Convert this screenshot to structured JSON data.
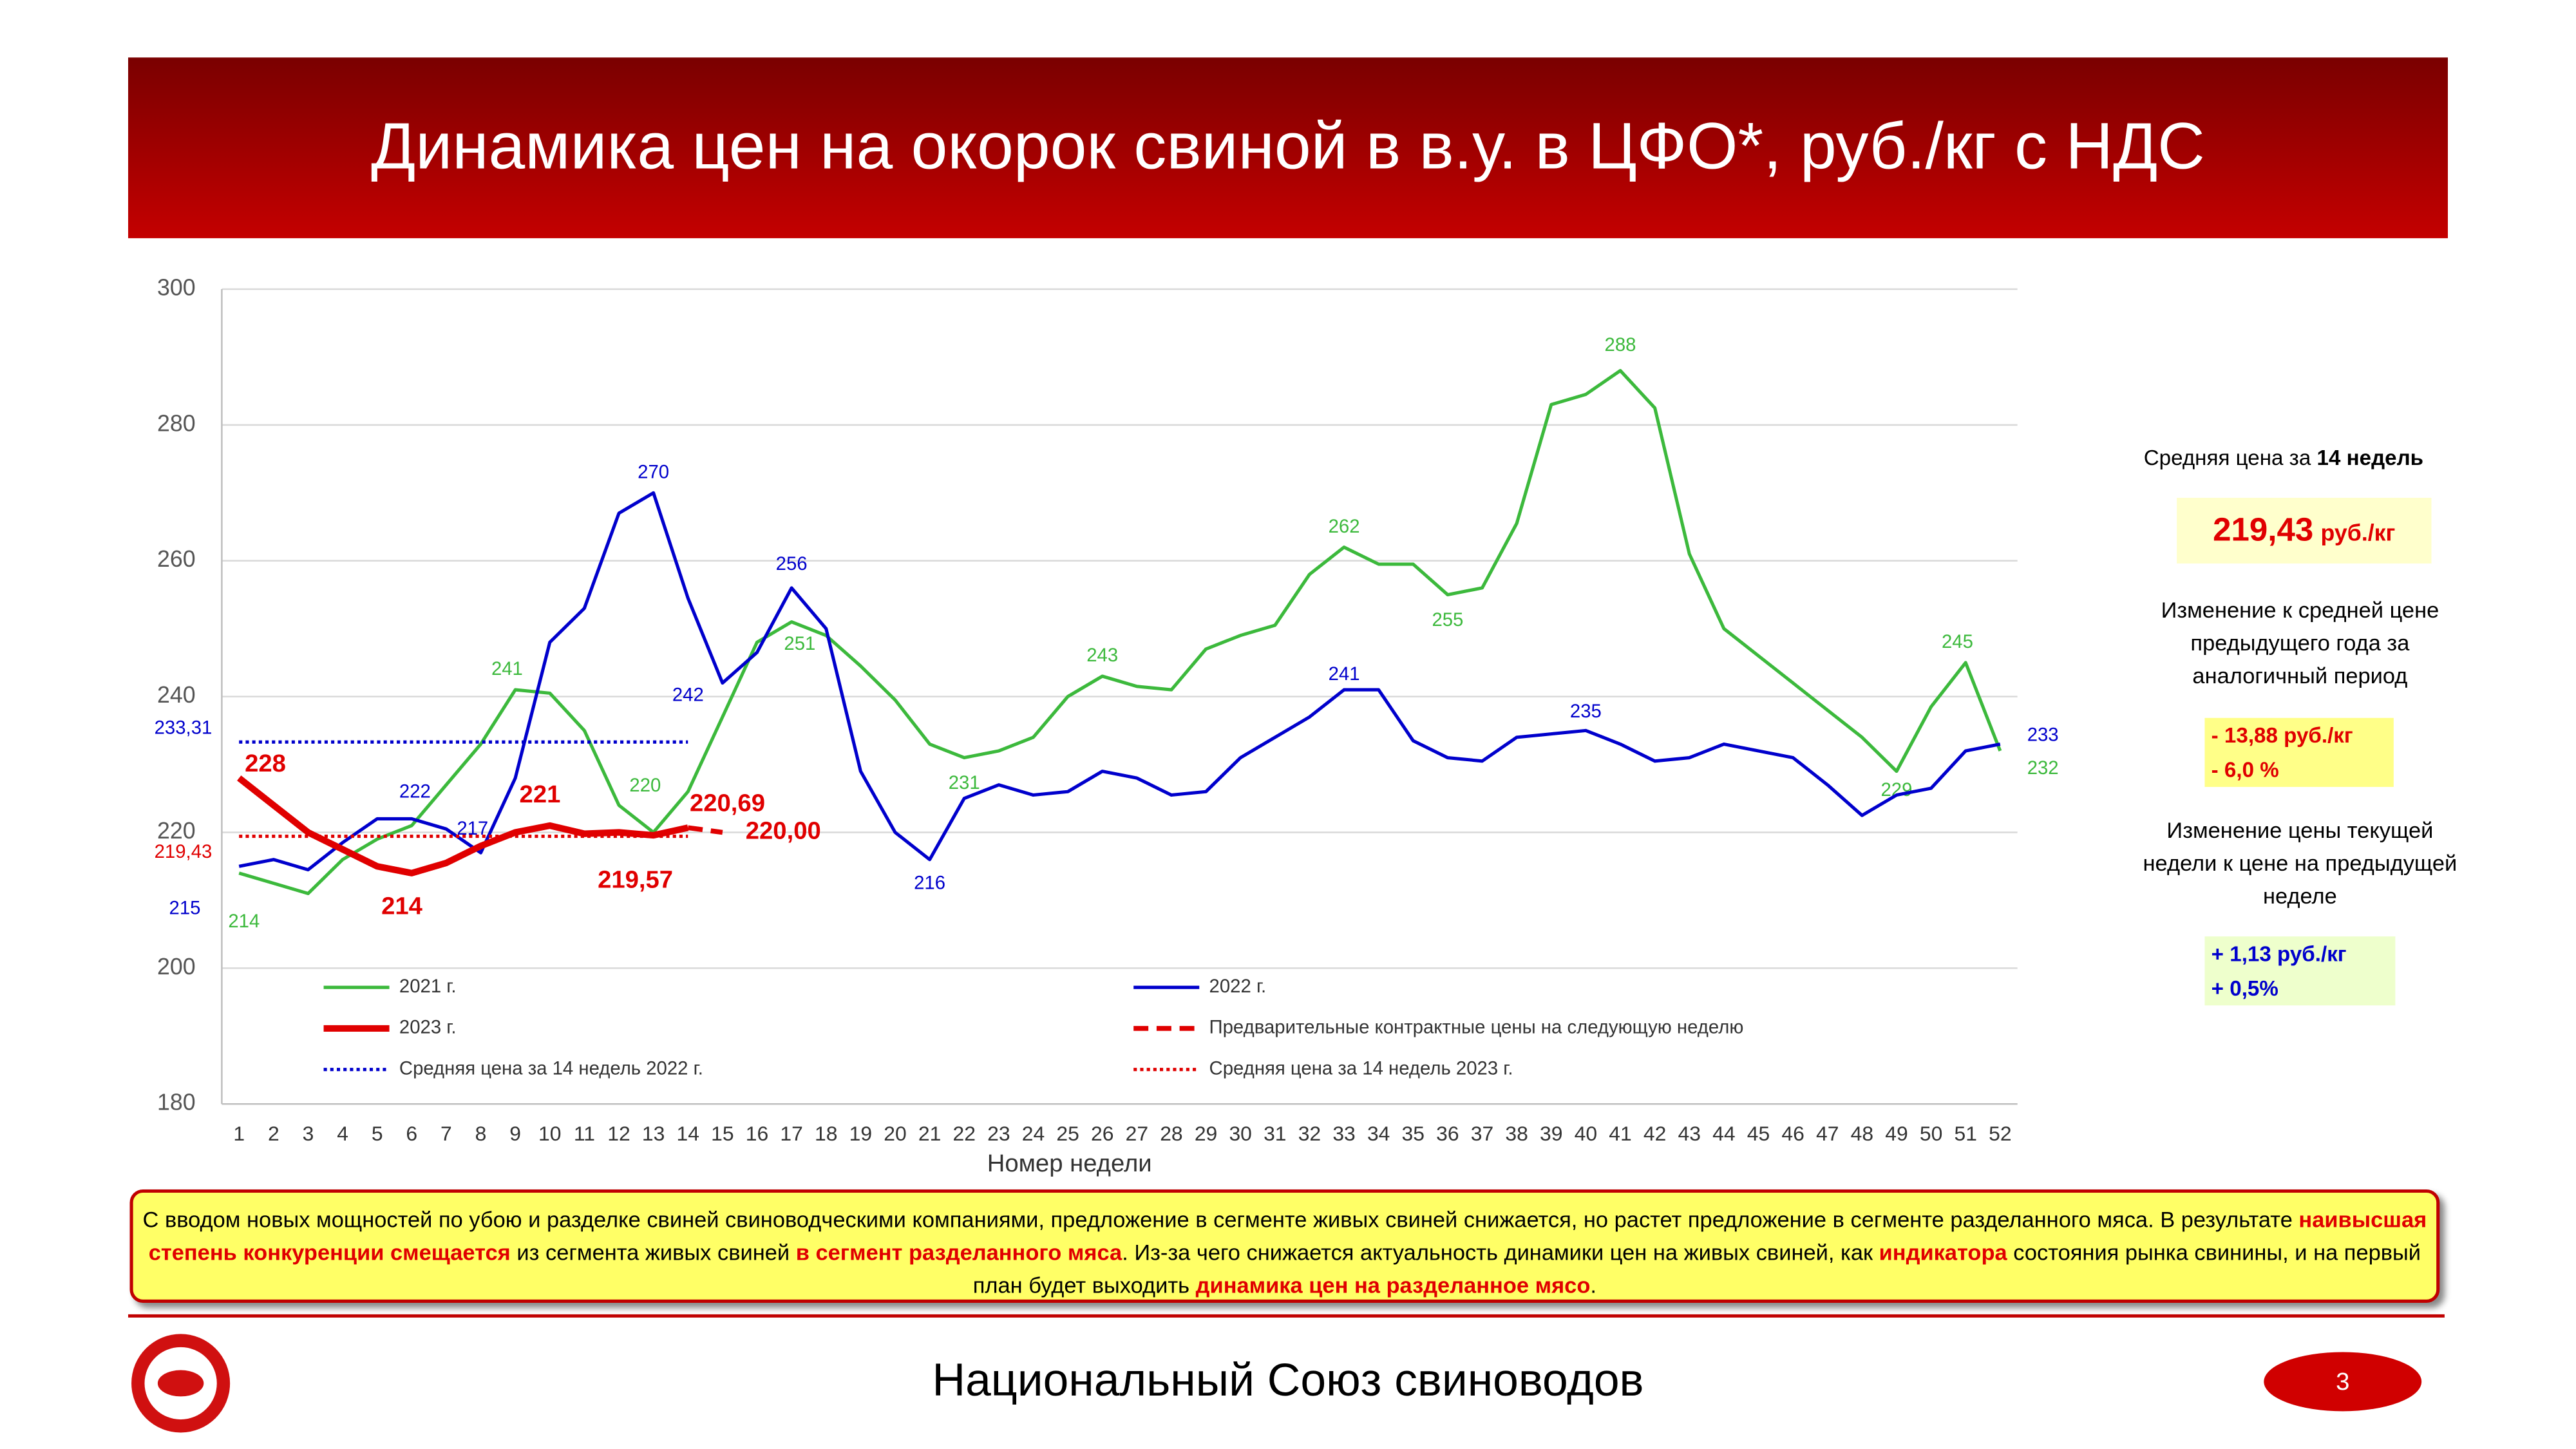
{
  "header": {
    "title": "Динамика цен на окорок свиной в в.у. в ЦФО*, руб./кг с НДС"
  },
  "chart_data": {
    "type": "line",
    "x_label": "Номер недели",
    "x": [
      1,
      2,
      3,
      4,
      5,
      6,
      7,
      8,
      9,
      10,
      11,
      12,
      13,
      14,
      15,
      16,
      17,
      18,
      19,
      20,
      21,
      22,
      23,
      24,
      25,
      26,
      27,
      28,
      29,
      30,
      31,
      32,
      33,
      34,
      35,
      36,
      37,
      38,
      39,
      40,
      41,
      42,
      43,
      44,
      45,
      46,
      47,
      48,
      49,
      50,
      51,
      52
    ],
    "xlim": [
      0.5,
      52.5
    ],
    "ylim": [
      180,
      300
    ],
    "yticks": [
      180,
      200,
      220,
      240,
      260,
      280,
      300
    ],
    "grid": true,
    "series": [
      {
        "name": "2021 г.",
        "color": "#3cb93c",
        "style": "solid",
        "width": 2,
        "values": [
          214,
          212.5,
          211,
          216,
          219,
          221,
          227,
          233,
          241,
          240.5,
          235,
          224,
          220,
          226,
          237,
          248,
          251,
          249,
          244.5,
          239.5,
          233,
          231,
          232,
          234,
          240,
          243,
          241.5,
          241,
          247,
          249,
          250.5,
          258,
          262,
          259.5,
          259.5,
          255,
          256,
          265.5,
          283,
          284.5,
          288,
          282.5,
          261,
          250,
          246,
          242,
          238,
          234,
          229,
          238.5,
          245,
          232
        ],
        "value_labels": {
          "0": "214",
          "8": "241",
          "12": "220",
          "16": "251",
          "21": "231",
          "25": "243",
          "32": "262",
          "35": "255",
          "40": "288",
          "48": "229",
          "50": "245",
          "51": "232"
        }
      },
      {
        "name": "2022 г.",
        "color": "#0000cc",
        "style": "solid",
        "width": 2,
        "values": [
          215,
          216,
          214.5,
          218.5,
          222,
          222,
          220.5,
          217,
          228,
          248,
          253,
          267,
          270,
          254.5,
          242,
          246.5,
          256,
          250,
          229,
          220,
          216,
          225,
          227,
          225.5,
          226,
          229,
          228,
          225.5,
          226,
          231,
          234,
          237,
          241,
          241,
          233.5,
          231,
          230.5,
          234,
          234.5,
          235,
          233,
          230.5,
          231,
          233,
          232,
          231,
          227,
          222.5,
          225.5,
          226.5,
          232,
          233
        ],
        "value_labels": {
          "0": "215",
          "5": "222",
          "7": "217",
          "12": "270",
          "14": "242",
          "16": "256",
          "20": "216",
          "32": "241",
          "39": "235",
          "51": "233"
        }
      },
      {
        "name": "2023 г.",
        "color": "#e00000",
        "style": "solid",
        "width": 4,
        "values": [
          228,
          224,
          220,
          217.5,
          215,
          214,
          215.5,
          218,
          220,
          221,
          219.8,
          220,
          219.57,
          220.69,
          null,
          null,
          null,
          null,
          null,
          null,
          null,
          null,
          null,
          null,
          null,
          null,
          null,
          null,
          null,
          null,
          null,
          null,
          null,
          null,
          null,
          null,
          null,
          null,
          null,
          null,
          null,
          null,
          null,
          null,
          null,
          null,
          null,
          null,
          null,
          null,
          null,
          null
        ],
        "value_labels": {
          "0": "228",
          "5": "214",
          "9": "221",
          "12": "219,57",
          "13": "220,69"
        }
      },
      {
        "name": "Предварительные контрактные цены на следующую неделю",
        "color": "#e00000",
        "style": "dashed",
        "width": 3,
        "values": [
          null,
          null,
          null,
          null,
          null,
          null,
          null,
          null,
          null,
          null,
          null,
          null,
          null,
          220.69,
          220,
          null,
          null,
          null,
          null,
          null,
          null,
          null,
          null,
          null,
          null,
          null,
          null,
          null,
          null,
          null,
          null,
          null,
          null,
          null,
          null,
          null,
          null,
          null,
          null,
          null,
          null,
          null,
          null,
          null,
          null,
          null,
          null,
          null,
          null,
          null,
          null,
          null
        ],
        "value_labels": {
          "14": "220,00"
        }
      },
      {
        "name": "Средняя цена за 14 недель 2022 г.",
        "color": "#0000cc",
        "style": "dotted",
        "width": 2,
        "values": [
          233.31,
          233.31,
          233.31,
          233.31,
          233.31,
          233.31,
          233.31,
          233.31,
          233.31,
          233.31,
          233.31,
          233.31,
          233.31,
          233.31,
          null,
          null,
          null,
          null,
          null,
          null,
          null,
          null,
          null,
          null,
          null,
          null,
          null,
          null,
          null,
          null,
          null,
          null,
          null,
          null,
          null,
          null,
          null,
          null,
          null,
          null,
          null,
          null,
          null,
          null,
          null,
          null,
          null,
          null,
          null,
          null,
          null,
          null
        ],
        "value_labels": {
          "0": "233,31"
        }
      },
      {
        "name": "Средняя цена за 14 недель 2023 г.",
        "color": "#e00000",
        "style": "dotted",
        "width": 2,
        "values": [
          219.43,
          219.43,
          219.43,
          219.43,
          219.43,
          219.43,
          219.43,
          219.43,
          219.43,
          219.43,
          219.43,
          219.43,
          219.43,
          219.43,
          null,
          null,
          null,
          null,
          null,
          null,
          null,
          null,
          null,
          null,
          null,
          null,
          null,
          null,
          null,
          null,
          null,
          null,
          null,
          null,
          null,
          null,
          null,
          null,
          null,
          null,
          null,
          null,
          null,
          null,
          null,
          null,
          null,
          null,
          null,
          null,
          null,
          null
        ],
        "value_labels": {
          "0": "219,43"
        }
      }
    ]
  },
  "side_panel": {
    "avg_title": [
      "Средняя цена за ",
      "14 недель"
    ],
    "avg_value": "219,43",
    "avg_unit": "руб./кг",
    "year_title": "Изменение к средней цене предыдущего года за аналогичный период",
    "year_change": [
      "- 13,88 руб./кг",
      "- 6,0 %"
    ],
    "week_title": "Изменение цены текущей недели к цене на предыдущей неделе",
    "week_change": [
      "+ 1,13 руб./кг",
      "+ 0,5%"
    ]
  },
  "note": [
    {
      "text": "С вводом новых мощностей по убою и разделке свиней свиноводческими компаниями, предложение в сегменте живых свиней снижается, но растет предложение в сегменте разделанного мяса.  В результате ",
      "highlight": false
    },
    {
      "text": "наивысшая степень конкуренции смещается",
      "highlight": true
    },
    {
      "text": " из сегмента живых свиней ",
      "highlight": false
    },
    {
      "text": "в сегмент разделанного мяса",
      "highlight": true
    },
    {
      "text": ". Из-за чего снижается актуальность динамики цен на живых свиней, как ",
      "highlight": false
    },
    {
      "text": "индикатора",
      "highlight": true
    },
    {
      "text": " состояния рынка свинины, и на первый план будет выходить ",
      "highlight": false
    },
    {
      "text": "динамика цен на разделанное мясо",
      "highlight": true
    },
    {
      "text": ".",
      "highlight": false
    }
  ],
  "footer": {
    "organization": "Национальный Союз свиноводов",
    "page": "3"
  }
}
